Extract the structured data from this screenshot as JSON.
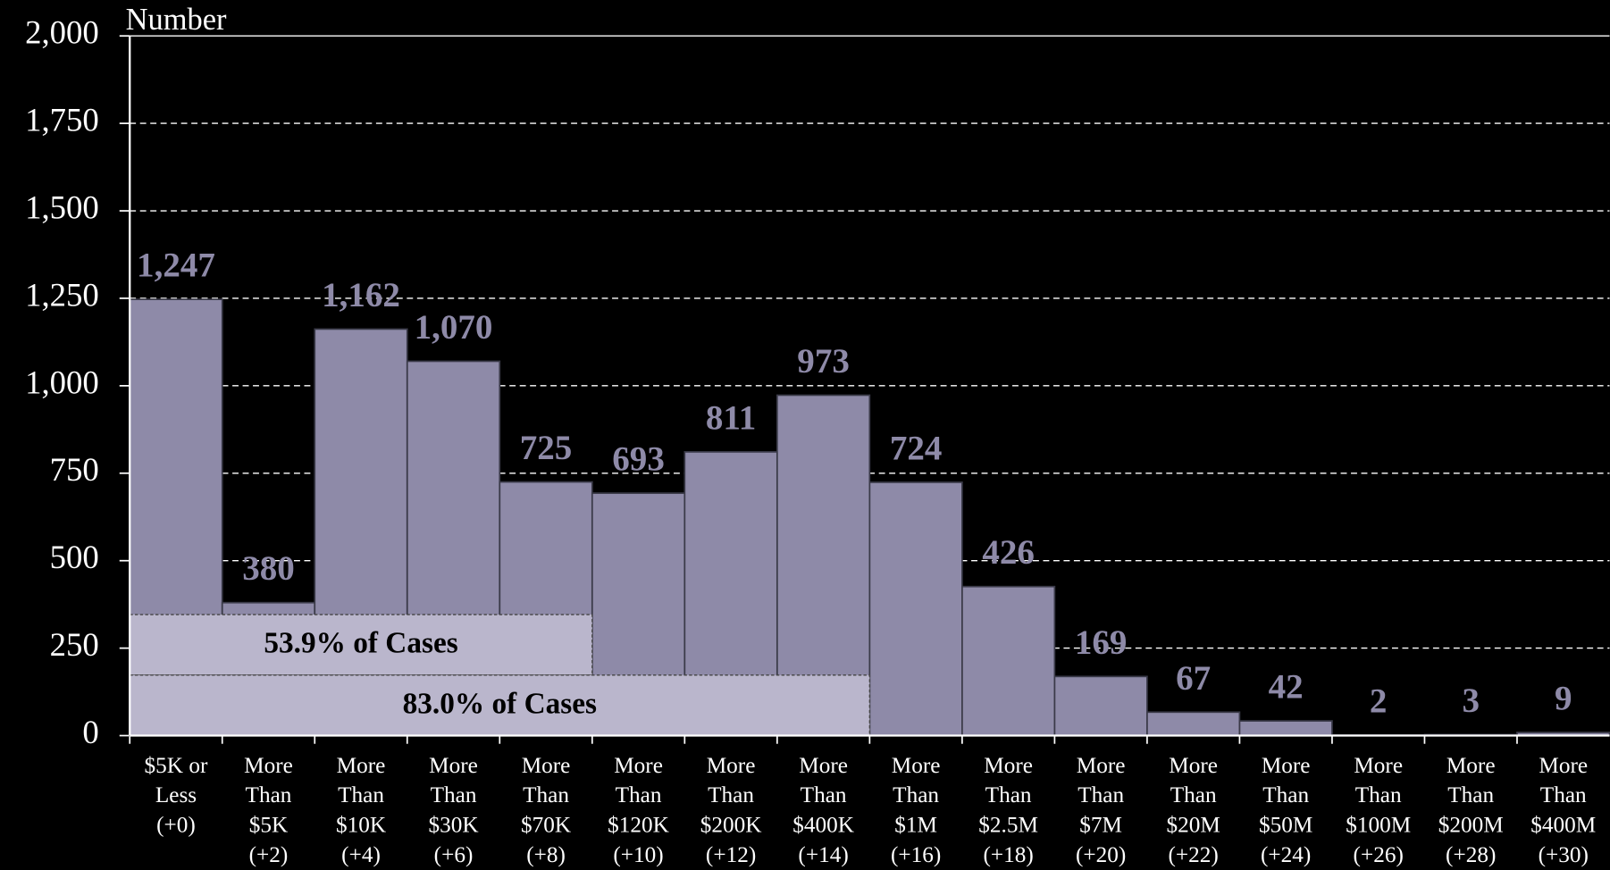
{
  "chart_data": {
    "type": "bar",
    "y_axis_label": "Number",
    "categories": [
      [
        "$5K or",
        "Less",
        "(+0)"
      ],
      [
        "More",
        "Than",
        "$5K",
        "(+2)"
      ],
      [
        "More",
        "Than",
        "$10K",
        "(+4)"
      ],
      [
        "More",
        "Than",
        "$30K",
        "(+6)"
      ],
      [
        "More",
        "Than",
        "$70K",
        "(+8)"
      ],
      [
        "More",
        "Than",
        "$120K",
        "(+10)"
      ],
      [
        "More",
        "Than",
        "$200K",
        "(+12)"
      ],
      [
        "More",
        "Than",
        "$400K",
        "(+14)"
      ],
      [
        "More",
        "Than",
        "$1M",
        "(+16)"
      ],
      [
        "More",
        "Than",
        "$2.5M",
        "(+18)"
      ],
      [
        "More",
        "Than",
        "$7M",
        "(+20)"
      ],
      [
        "More",
        "Than",
        "$20M",
        "(+22)"
      ],
      [
        "More",
        "Than",
        "$50M",
        "(+24)"
      ],
      [
        "More",
        "Than",
        "$100M",
        "(+26)"
      ],
      [
        "More",
        "Than",
        "$200M",
        "(+28)"
      ],
      [
        "More",
        "Than",
        "$400M",
        "(+30)"
      ]
    ],
    "values": [
      1247,
      380,
      1162,
      1070,
      725,
      693,
      811,
      973,
      724,
      426,
      169,
      67,
      42,
      2,
      3,
      9
    ],
    "value_labels": [
      "1,247",
      "380",
      "1,162",
      "1,070",
      "725",
      "693",
      "811",
      "973",
      "724",
      "426",
      "169",
      "67",
      "42",
      "2",
      "3",
      "9"
    ],
    "color": "#8e8aa8",
    "ylim": [
      0,
      2000
    ],
    "yticks": [
      0,
      250,
      500,
      750,
      {
        "value": 1000,
        "label": "1,000"
      },
      {
        "value": 1250,
        "label": "1,250"
      },
      {
        "value": 1500,
        "label": "1,500"
      },
      {
        "value": 1750,
        "label": "1,750"
      },
      {
        "value": 2000,
        "label": "2,000"
      }
    ],
    "grid": true,
    "annotations": [
      "53.9% of Cases",
      "83.0% of Cases"
    ]
  }
}
